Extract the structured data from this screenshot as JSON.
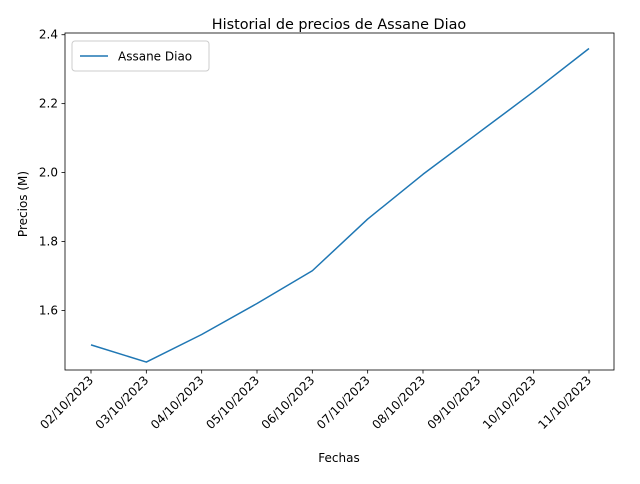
{
  "chart_data": {
    "type": "line",
    "title": "Historial de precios de Assane Diao",
    "xlabel": "Fechas",
    "ylabel": "Precios (M)",
    "categories": [
      "02/10/2023",
      "03/10/2023",
      "04/10/2023",
      "05/10/2023",
      "06/10/2023",
      "07/10/2023",
      "08/10/2023",
      "09/10/2023",
      "10/10/2023",
      "11/10/2023"
    ],
    "series": [
      {
        "name": "Assane Diao",
        "color": "#1f77b4",
        "values": [
          1.5,
          1.45,
          1.53,
          1.62,
          1.715,
          1.865,
          1.995,
          2.115,
          2.235,
          2.36
        ]
      }
    ],
    "yticks": [
      "1.6",
      "1.8",
      "2.0",
      "2.2",
      "2.4"
    ],
    "ylim": [
      1.427,
      2.405
    ],
    "grid": false,
    "legend_position": "top-left"
  }
}
